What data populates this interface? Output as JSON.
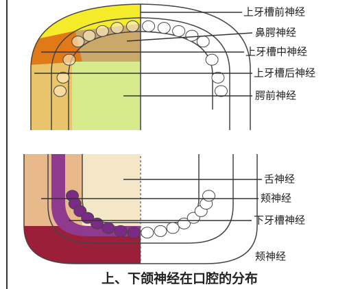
{
  "upper": {
    "labels": [
      "上牙槽前神经",
      "鼻腭神经",
      "上牙槽中神经",
      "上牙槽后神经",
      "腭前神经"
    ]
  },
  "lower": {
    "labels": [
      "舌神经",
      "颊神经",
      "下牙槽神经",
      "颊神经"
    ]
  },
  "caption": "上、下颌神经在口腔的分布"
}
